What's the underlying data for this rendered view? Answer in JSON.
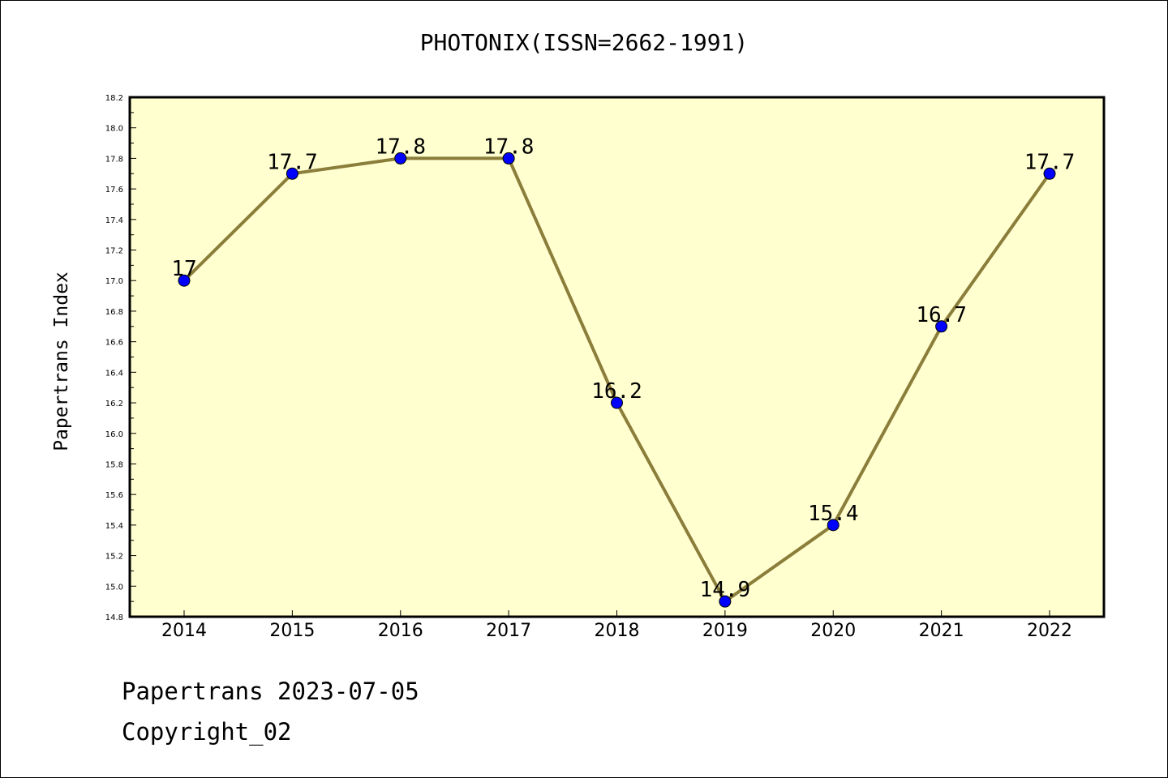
{
  "chart_data": {
    "type": "line",
    "title": "PHOTONIX(ISSN=2662-1991)",
    "ylabel": "Papertrans Index",
    "xlabel": "",
    "categories": [
      "2014",
      "2015",
      "2016",
      "2017",
      "2018",
      "2019",
      "2020",
      "2021",
      "2022"
    ],
    "values": [
      17.0,
      17.7,
      17.8,
      17.8,
      16.2,
      14.9,
      15.4,
      16.7,
      17.7
    ],
    "data_labels": [
      "17",
      "17.7",
      "17.8",
      "17.8",
      "16.2",
      "14.9",
      "15.4",
      "16.7",
      "17.7"
    ],
    "ylim": [
      14.8,
      18.2
    ],
    "yticks": [
      "14.8",
      "15.0",
      "15.2",
      "15.4",
      "15.6",
      "15.8",
      "16.0",
      "16.2",
      "16.4",
      "16.6",
      "16.8",
      "17.0",
      "17.2",
      "17.4",
      "17.6",
      "17.8",
      "18.0",
      "18.2"
    ],
    "grid": false,
    "colors": {
      "plot_background": "#ffffd0",
      "line": "#8b7d3a",
      "marker": "#0000ff"
    }
  },
  "footer": {
    "line1": "Papertrans 2023-07-05",
    "line2": "Copyright_02"
  }
}
